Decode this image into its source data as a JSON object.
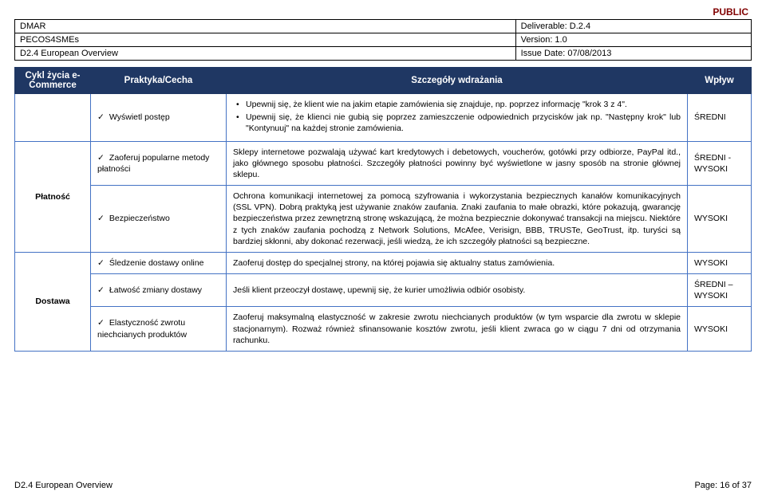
{
  "publicLabel": "PUBLIC",
  "header": {
    "rows": [
      {
        "left": "DMAR",
        "right": "Deliverable: D.2.4"
      },
      {
        "left": "PECOS4SMEs",
        "right": "Version: 1.0"
      },
      {
        "left": "D2.4 European Overview",
        "right": "Issue Date: 07/08/2013"
      }
    ]
  },
  "columns": {
    "cycle": "Cykl życia e-Commerce",
    "practice": "Praktyka/Cecha",
    "details": "Szczegóły wdrażania",
    "impact": "Wpływ"
  },
  "rows": [
    {
      "cycle": "",
      "practice": "Wyświetl postęp",
      "bullet": true,
      "details": [
        "Upewnij się, że klient wie na jakim etapie zamówienia się znajduje, np. poprzez informację \"krok 3 z 4\".",
        "Upewnij się, że klienci nie gubią się poprzez zamieszczenie odpowiednich przycisków jak np. \"Następny krok\" lub \"Kontynuuj\" na każdej stronie zamówienia."
      ],
      "impact": "ŚREDNI"
    },
    {
      "cycle": "",
      "practice": "Zaoferuj popularne metody płatności",
      "bullet": false,
      "details": "Sklepy internetowe pozwalają używać kart kredytowych i debetowych, voucherów, gotówki przy odbiorze, PayPal itd., jako głównego sposobu płatności. Szczegóły płatności powinny być wyświetlone w jasny sposób na stronie głównej sklepu.",
      "impact": "ŚREDNI - WYSOKI"
    },
    {
      "cycle": "Płatność",
      "practice": "Bezpieczeństwo",
      "bullet": false,
      "details": "Ochrona komunikacji internetowej za pomocą szyfrowania i wykorzystania bezpiecznych kanałów komunikacyjnych (SSL VPN). Dobrą praktyką jest używanie znaków zaufania. Znaki zaufania to małe obrazki, które pokazują, gwarancję bezpieczeństwa przez zewnętrzną stronę wskazującą, że można bezpiecznie dokonywać transakcji na miejscu. Niektóre z tych znaków zaufania pochodzą z Network Solutions, McAfee, Verisign, BBB, TRUSTe, GeoTrust, itp. turyści są bardziej skłonni, aby dokonać rezerwacji, jeśli wiedzą, że ich szczegóły płatności są bezpieczne.",
      "impact": "WYSOKI"
    },
    {
      "cycle": "",
      "practice": "Śledzenie dostawy online",
      "bullet": false,
      "details": "Zaoferuj dostęp do specjalnej strony, na której pojawia się aktualny status zamówienia.",
      "impact": "WYSOKI"
    },
    {
      "cycle": "Dostawa",
      "practice": "Łatwość zmiany dostawy",
      "bullet": false,
      "details": "Jeśli klient przeoczył dostawę, upewnij się, że kurier umożliwia odbiór osobisty.",
      "impact": "ŚREDNI – WYSOKI"
    },
    {
      "cycle": "",
      "practice": "Elastyczność zwrotu niechcianych produktów",
      "bullet": false,
      "details": "Zaoferuj maksymalną elastyczność w zakresie zwrotu niechcianych produktów (w tym wsparcie dla zwrotu w sklepie stacjonarnym). Rozważ również sfinansowanie kosztów zwrotu, jeśli klient zwraca go w ciągu 7 dni od otrzymania rachunku.",
      "impact": "WYSOKI"
    }
  ],
  "footer": {
    "left": "D2.4 European Overview",
    "right": "Page: 16 of 37"
  },
  "colors": {
    "headerBg": "#1f3763",
    "headerText": "#ffffff",
    "border": "#4472c4",
    "public": "#800000"
  }
}
